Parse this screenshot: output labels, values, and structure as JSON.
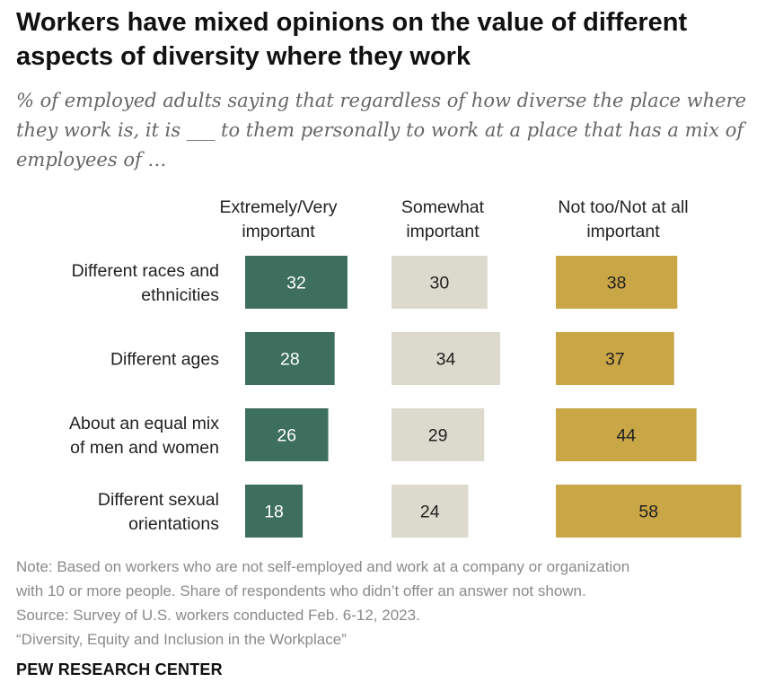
{
  "title": "Workers have mixed opinions on the value of different aspects of diversity where they work",
  "subtitle": "% of employed adults saying that regardless of how diverse the place where they work is, it is ___ to them personally to work at a place that has a mix of employees of …",
  "notes": {
    "note_line1": "Note: Based on workers who are not self-employed and work at a company or organization",
    "note_line2": "with 10 or more people. Share of respondents who didn’t offer an answer not shown.",
    "source": "Source: Survey of U.S. workers conducted Feb. 6-12, 2023.",
    "report": "“Diversity, Equity and Inclusion in the Workplace”"
  },
  "brand": "PEW RESEARCH CENTER",
  "chart_data": {
    "type": "bar",
    "orientation": "horizontal",
    "layout": "grouped columns of bars, one per response category",
    "categories": [
      [
        "Different races and",
        "ethnicities"
      ],
      [
        "Different ages"
      ],
      [
        "About an equal mix",
        "of men and women"
      ],
      [
        "Different sexual",
        "orientations"
      ]
    ],
    "series": [
      {
        "name": [
          "Extremely/Very",
          "important"
        ],
        "color": "#3d6e5e",
        "label_color": "#ffffff",
        "values": [
          32,
          28,
          26,
          18
        ]
      },
      {
        "name": [
          "Somewhat",
          "important"
        ],
        "color": "#dcd9cd",
        "label_color": "#222222",
        "values": [
          30,
          34,
          29,
          24
        ]
      },
      {
        "name": [
          "Not too/Not at all",
          "important"
        ],
        "color": "#c9a646",
        "label_color": "#222222",
        "values": [
          38,
          37,
          44,
          58
        ]
      }
    ]
  }
}
